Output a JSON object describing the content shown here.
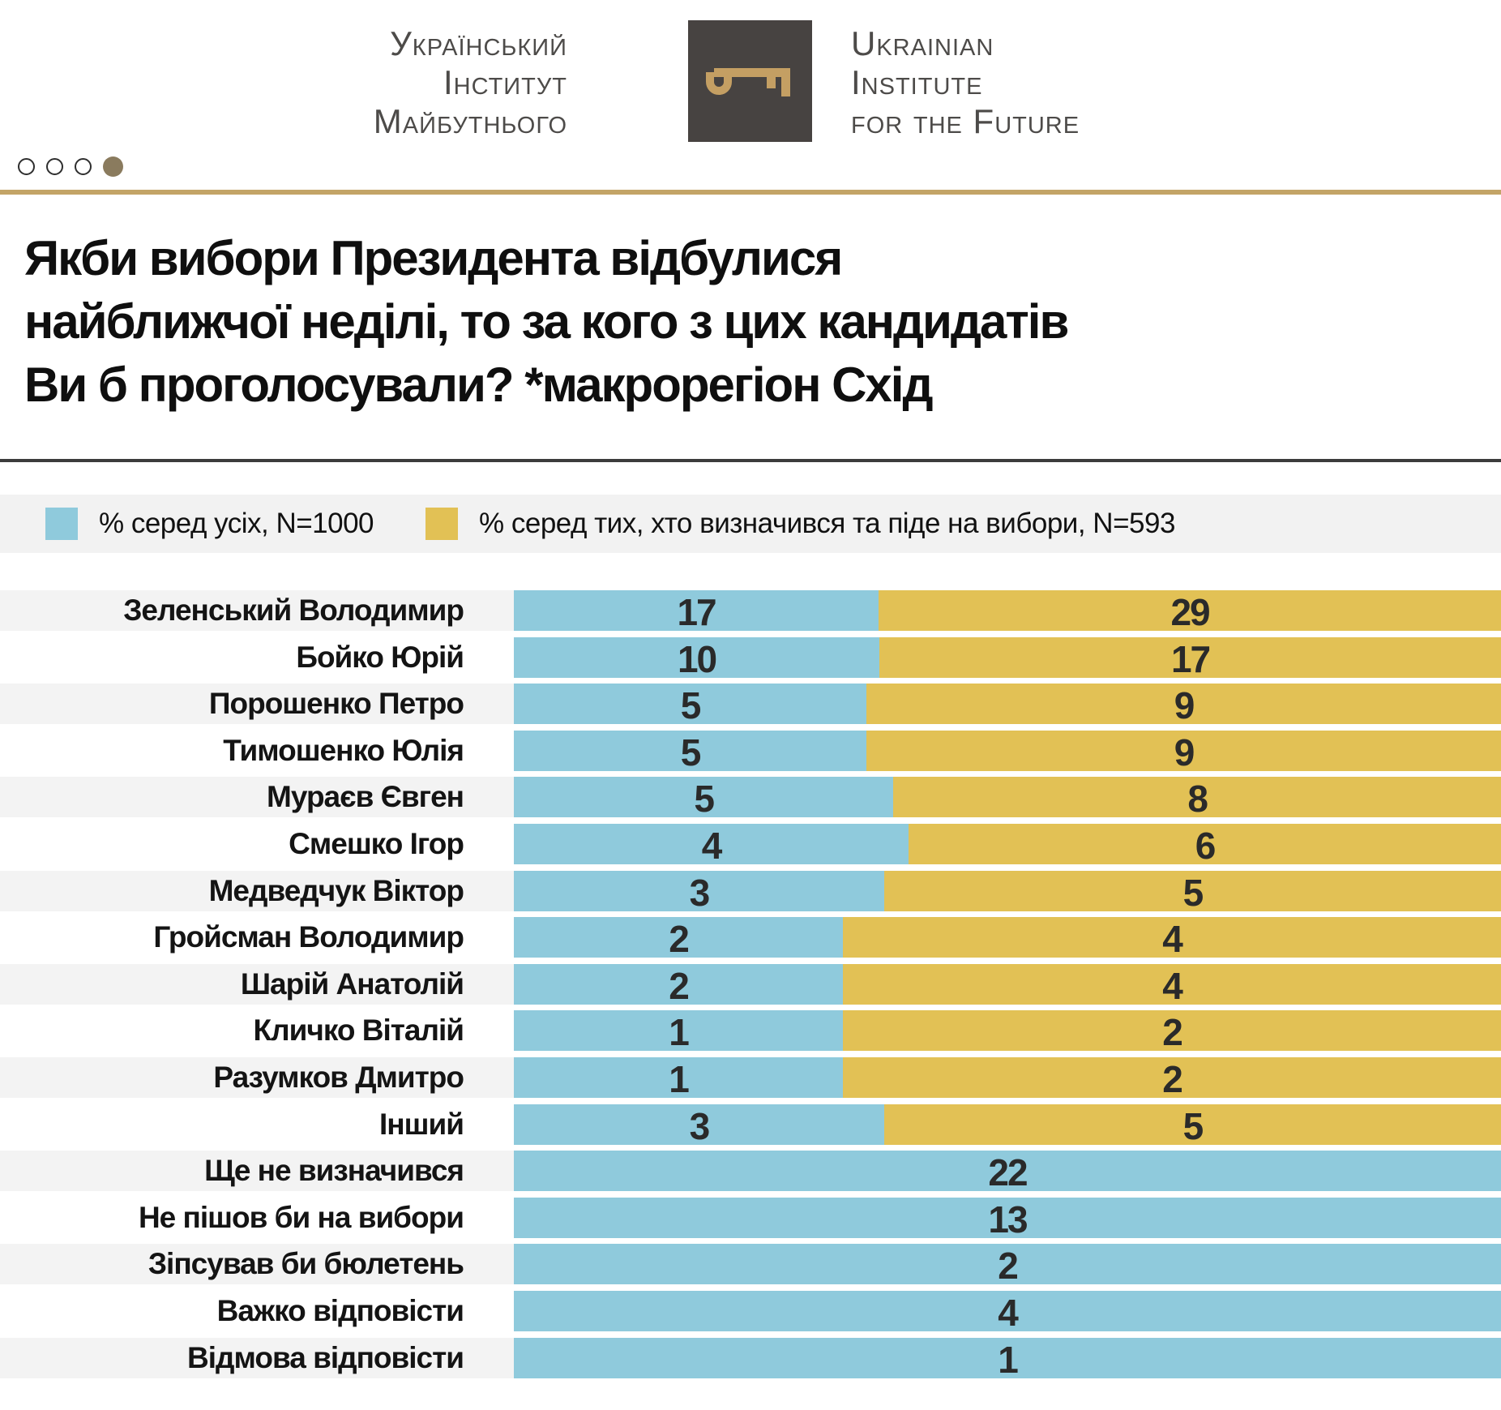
{
  "header": {
    "logo_left_lines": [
      "Український",
      "Інститут",
      "Майбутнього"
    ],
    "logo_right_lines": [
      "Ukrainian",
      "Institute",
      "for the Future"
    ],
    "dots": [
      "empty",
      "empty",
      "empty",
      "filled"
    ]
  },
  "title": {
    "lines": [
      "Якби вибори Президента відбулися",
      "найближчої неділі, то за кого з цих кандидатів",
      "Ви б проголосували? *макрорегіон Схід"
    ]
  },
  "legend": {
    "items": [
      {
        "label": "% серед усіх, N=1000",
        "color": "#8fcadc"
      },
      {
        "label": "% серед тих, хто визначився та піде на вибори, N=593",
        "color": "#e2c155"
      }
    ]
  },
  "chart_data": {
    "type": "bar",
    "orientation": "horizontal",
    "stacking": "percent",
    "note": "each row is a 100%-stacked bar: blue width = v1/(v1+v2); rows without second value are fully blue",
    "title": "Якби вибори Президента відбулися найближчої неділі, то за кого з цих кандидатів Ви б проголосували? *макрорегіон Схід",
    "categories": [
      "Зеленський Володимир",
      "Бойко Юрій",
      "Порошенко Петро",
      "Тимошенко Юлія",
      "Мураєв Євген",
      "Смешко Ігор",
      "Медведчук Віктор",
      "Гройсман Володимир",
      "Шарій Анатолій",
      "Кличко Віталій",
      "Разумков Дмитро",
      "Інший",
      "Ще не визначився",
      "Не пішов би на вибори",
      "Зіпсував би бюлетень",
      "Важко відповісти",
      "Відмова відповісти"
    ],
    "series": [
      {
        "name": "% серед усіх, N=1000",
        "color": "#8fcadc",
        "values": [
          17,
          10,
          5,
          5,
          5,
          4,
          3,
          2,
          2,
          1,
          1,
          3,
          22,
          13,
          2,
          4,
          1
        ]
      },
      {
        "name": "% серед тих, хто визначився та піде на вибори, N=593",
        "color": "#e2c155",
        "values": [
          29,
          17,
          9,
          9,
          8,
          6,
          5,
          4,
          4,
          2,
          2,
          5,
          null,
          null,
          null,
          null,
          null
        ]
      }
    ],
    "colors": {
      "number_text": "#2a2a2a",
      "row_stripe": "#f3f3f3"
    }
  },
  "misc": {
    "gold_line_color": "#c3a467",
    "logo_box_color": "#474341",
    "logo_key_color": "#c49f63"
  }
}
